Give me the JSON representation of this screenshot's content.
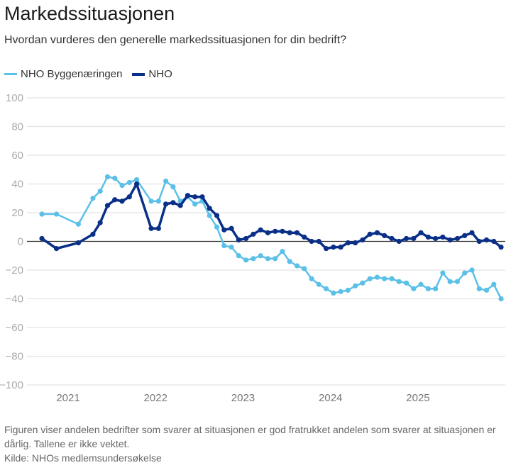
{
  "title": "Markedssituasjonen",
  "subtitle": "Hvordan vurderes den generelle markedssituasjonen for din bedrift?",
  "note": "Figuren viser andelen bedrifter som svarer at situasjonen er god fratrukket andelen som svarer at situasjonen er dårlig. Tallene er ikke vektet.",
  "source": "Kilde: NHOs medlemsundersøkelse",
  "chart_data": {
    "type": "line",
    "ylim": [
      -100,
      100
    ],
    "yticks": [
      "100",
      "80",
      "60",
      "40",
      "20",
      "0",
      "−20",
      "−40",
      "−60",
      "−80",
      "−100"
    ],
    "ytick_values": [
      100,
      80,
      60,
      40,
      20,
      0,
      -20,
      -40,
      -60,
      -80,
      -100
    ],
    "xticks": [
      "2021",
      "2022",
      "2023",
      "2024",
      "2025"
    ],
    "grid": true,
    "legend_position": "top-left",
    "x": [
      "2020-09",
      "2020-11",
      "2021-02",
      "2021-04",
      "2021-05",
      "2021-06",
      "2021-07",
      "2021-08",
      "2021-09",
      "2021-10",
      "2021-12",
      "2022-01",
      "2022-02",
      "2022-03",
      "2022-04",
      "2022-05",
      "2022-06",
      "2022-07",
      "2022-08",
      "2022-09",
      "2022-10",
      "2022-11",
      "2022-12",
      "2023-01",
      "2023-02",
      "2023-03",
      "2023-04",
      "2023-05",
      "2023-06",
      "2023-07",
      "2023-08",
      "2023-09",
      "2023-10",
      "2023-11",
      "2023-12",
      "2024-01",
      "2024-02",
      "2024-03",
      "2024-04",
      "2024-05",
      "2024-06",
      "2024-07",
      "2024-08",
      "2024-09",
      "2024-10",
      "2024-11",
      "2024-12",
      "2025-01",
      "2025-02",
      "2025-03",
      "2025-04",
      "2025-05",
      "2025-06",
      "2025-07",
      "2025-08",
      "2025-09",
      "2025-10",
      "2025-11",
      "2025-12"
    ],
    "series": [
      {
        "name": "NHO Byggenæringen",
        "color": "#5bc0e8",
        "values": [
          19,
          19,
          12,
          30,
          35,
          45,
          44,
          39,
          41,
          43,
          28,
          28,
          42,
          38,
          28,
          31,
          26,
          28,
          18,
          10,
          -3,
          -4,
          -10,
          -13,
          -12,
          -10,
          -12,
          -12,
          -7,
          -14,
          -17,
          -19,
          -26,
          -30,
          -33,
          -36,
          -35,
          -34,
          -31,
          -29,
          -26,
          -25,
          -26,
          -26,
          -28,
          -29,
          -33,
          -30,
          -33,
          -33,
          -22,
          -28,
          -28,
          -22,
          -20,
          -33,
          -34,
          -30,
          -40
        ]
      },
      {
        "name": "NHO",
        "color": "#0a2f87",
        "values": [
          2,
          -5,
          -1,
          5,
          13,
          25,
          29,
          28,
          31,
          40,
          9,
          9,
          26,
          27,
          25,
          32,
          31,
          31,
          23,
          18,
          8,
          9,
          1,
          2,
          5,
          8,
          6,
          7,
          7,
          6,
          6,
          3,
          0,
          0,
          -5,
          -4,
          -4,
          -1,
          -1,
          1,
          5,
          6,
          4,
          2,
          0,
          2,
          2,
          6,
          3,
          2,
          3,
          1,
          2,
          4,
          6,
          0,
          1,
          0,
          -4
        ]
      }
    ]
  }
}
